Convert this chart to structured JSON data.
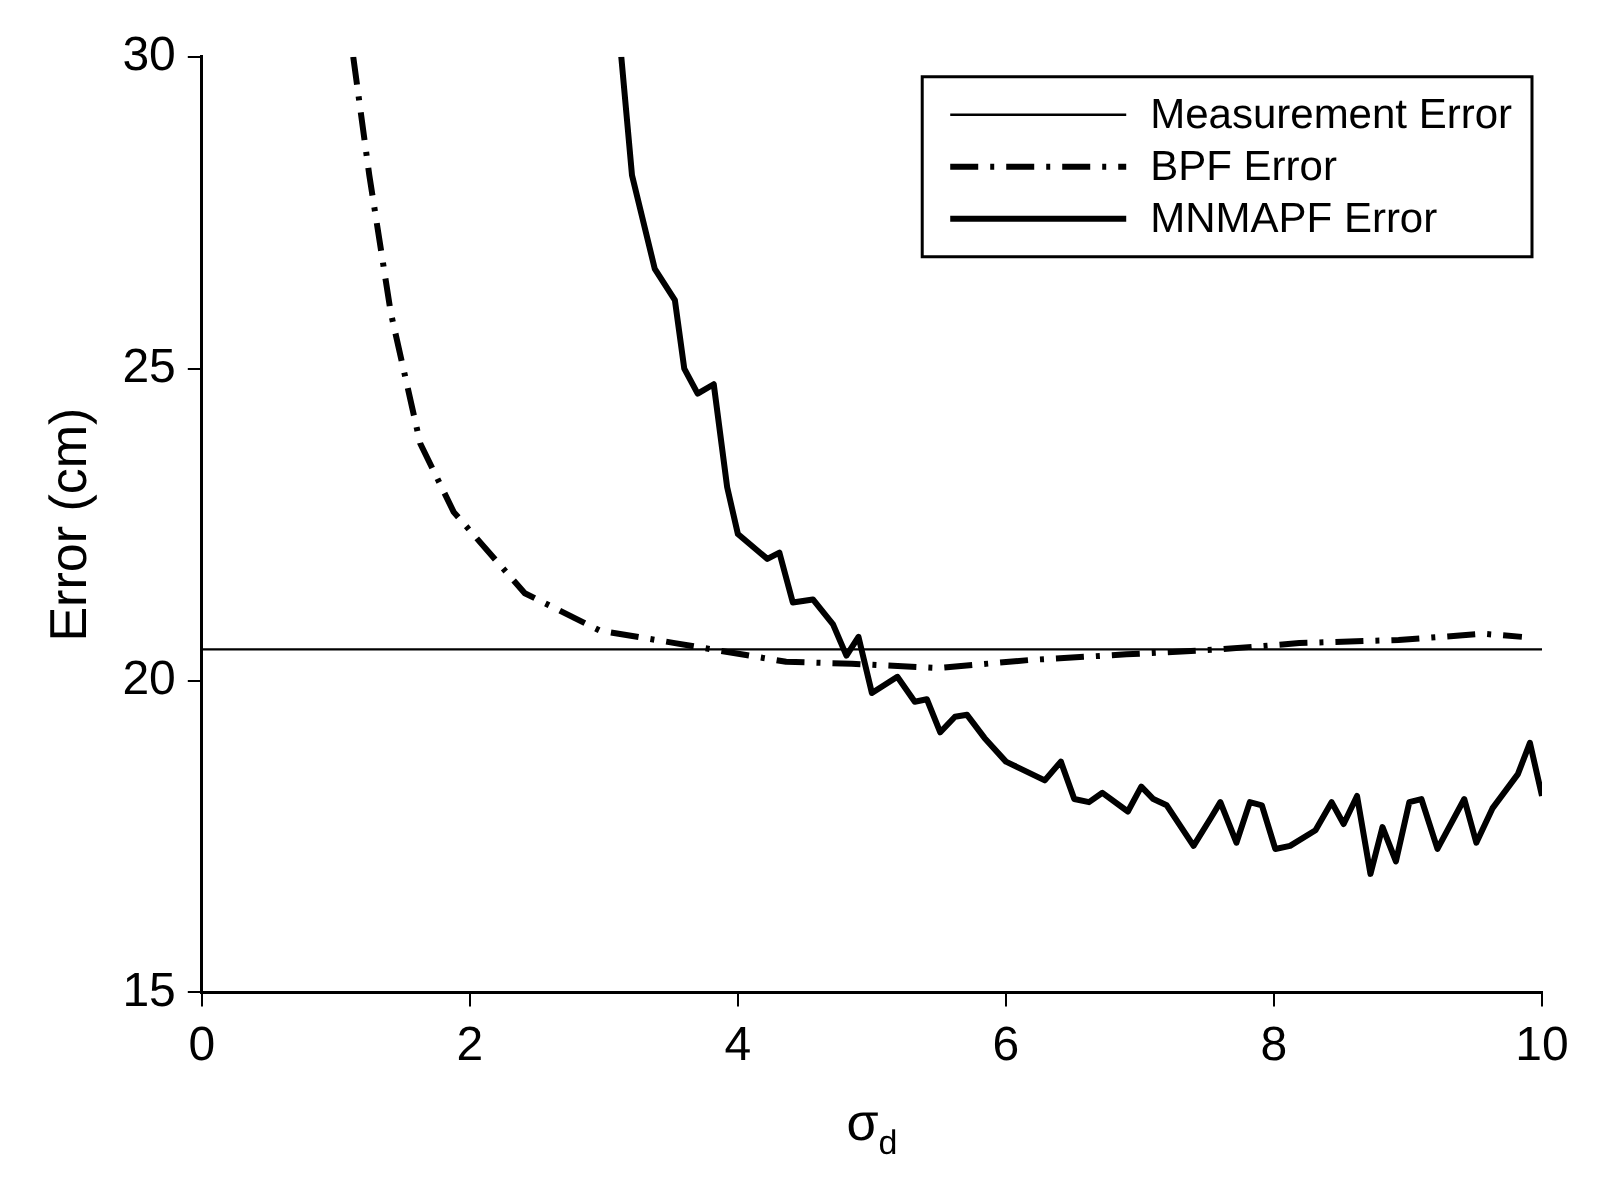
{
  "chart_data": {
    "type": "line",
    "xlabel": "σ$_{d}$",
    "ylabel": "Error (cm)",
    "xlim": [
      0,
      10
    ],
    "ylim": [
      15,
      30
    ],
    "xticks": [
      0,
      2,
      4,
      6,
      8,
      10
    ],
    "yticks": [
      15,
      20,
      25,
      30
    ],
    "grid": false,
    "legend": "top right",
    "marker": "none",
    "series": [
      {
        "name": "Measurement Error",
        "color": "#000000",
        "line_style": "solid",
        "x": [
          0,
          10
        ],
        "values": [
          20.5,
          20.5
        ]
      },
      {
        "name": "BPF Error",
        "color": "#000000",
        "line_style": "dashdot",
        "x": [
          1.13,
          1.25,
          1.41,
          1.63,
          1.88,
          2.41,
          2.97,
          3.53,
          4.36,
          4.85,
          5.49,
          6.18,
          6.9,
          7.6,
          8.19,
          8.93,
          9.56,
          9.85
        ],
        "values": [
          30,
          28.1,
          25.9,
          23.8,
          22.7,
          21.4,
          20.8,
          20.6,
          20.3,
          20.27,
          20.2,
          20.33,
          20.42,
          20.5,
          20.6,
          20.65,
          20.75,
          20.7
        ]
      },
      {
        "name": "MNMAPF Error",
        "color": "#000000",
        "line_style": "solid",
        "x": [
          3.13,
          3.21,
          3.38,
          3.53,
          3.6,
          3.7,
          3.82,
          3.92,
          4.0,
          4.22,
          4.31,
          4.41,
          4.56,
          4.71,
          4.81,
          4.9,
          5.0,
          5.19,
          5.32,
          5.41,
          5.51,
          5.62,
          5.71,
          5.84,
          6.0,
          6.29,
          6.41,
          6.51,
          6.62,
          6.72,
          6.91,
          7.01,
          7.1,
          7.2,
          7.4,
          7.53,
          7.6,
          7.72,
          7.82,
          7.91,
          8.01,
          8.12,
          8.31,
          8.43,
          8.52,
          8.62,
          8.72,
          8.81,
          8.91,
          9.01,
          9.1,
          9.22,
          9.42,
          9.51,
          9.63,
          9.82,
          9.91,
          10
        ],
        "values": [
          30,
          28.1,
          26.6,
          26.1,
          25.0,
          24.6,
          24.75,
          23.1,
          22.35,
          21.95,
          22.05,
          21.25,
          21.3,
          20.9,
          20.4,
          20.7,
          19.8,
          20.06,
          19.66,
          19.7,
          19.17,
          19.42,
          19.45,
          19.08,
          18.7,
          18.4,
          18.7,
          18.1,
          18.05,
          18.2,
          17.9,
          18.3,
          18.1,
          18.0,
          17.35,
          17.8,
          18.05,
          17.4,
          18.05,
          18.0,
          17.3,
          17.35,
          17.6,
          18.05,
          17.7,
          18.15,
          16.9,
          17.65,
          17.1,
          18.05,
          18.1,
          17.3,
          18.1,
          17.4,
          17.95,
          18.5,
          19.0,
          18.15
        ]
      }
    ]
  }
}
